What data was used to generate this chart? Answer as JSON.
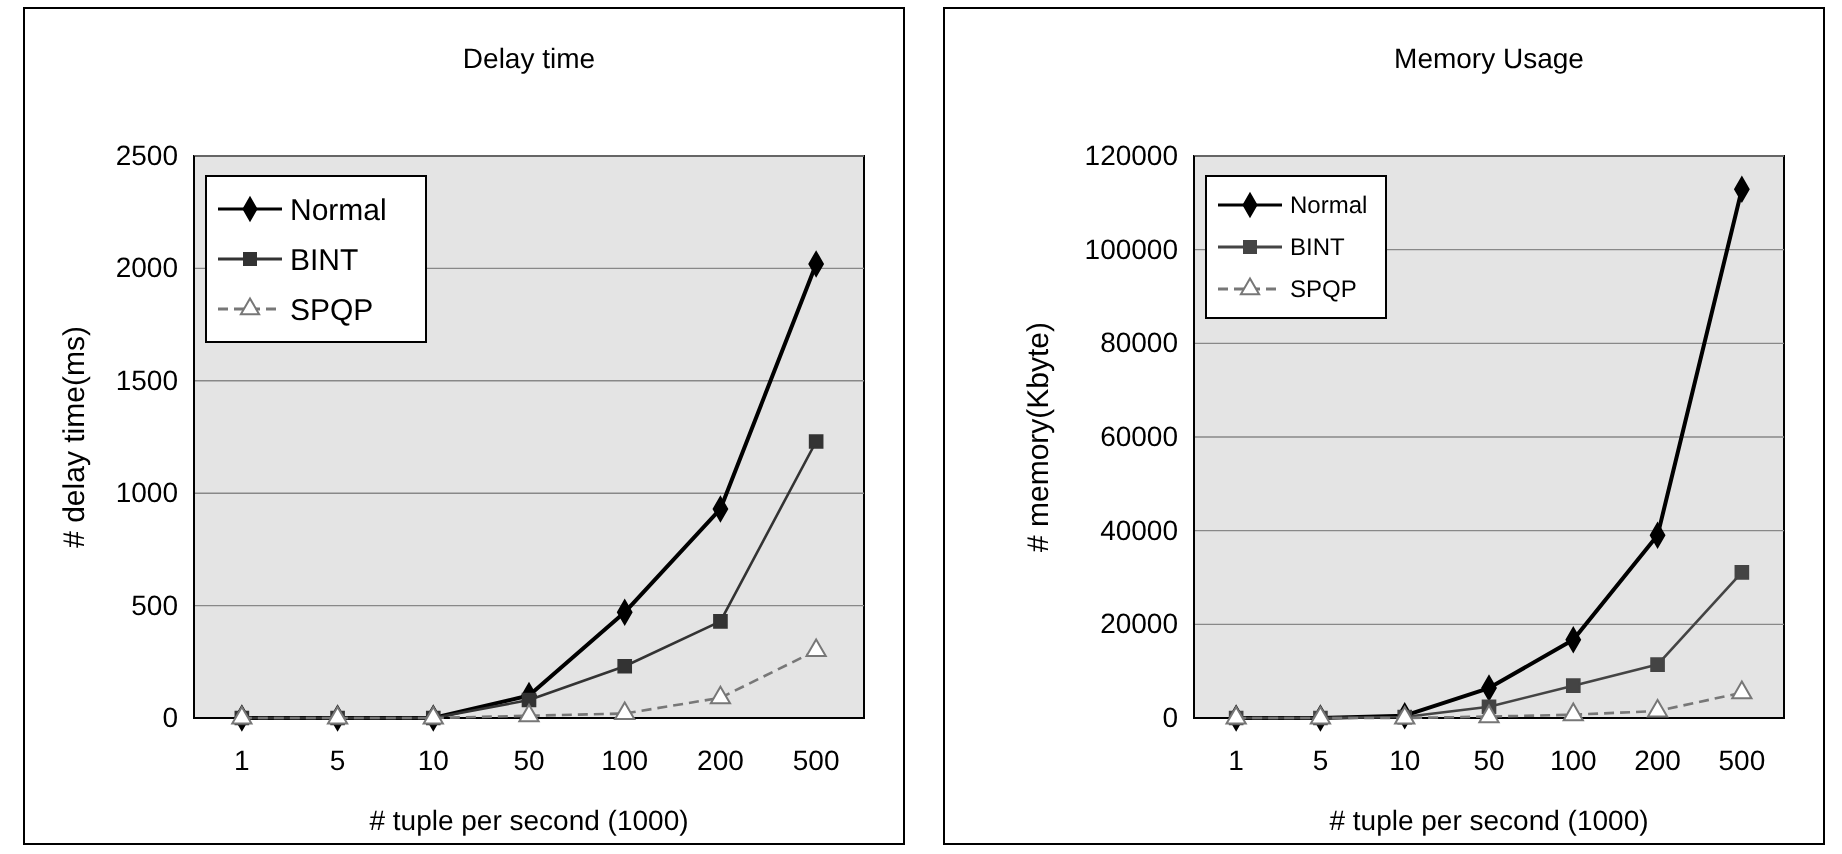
{
  "chart_data": [
    {
      "type": "line",
      "title": "Delay time",
      "xlabel": "#  tuple per second (1000)",
      "ylabel": "# delay time(ms)",
      "categories": [
        "1",
        "5",
        "10",
        "50",
        "100",
        "200",
        "500"
      ],
      "series": [
        {
          "name": "Normal",
          "color": "#000000",
          "marker": "diamond",
          "values": [
            0,
            0,
            0,
            100,
            470,
            930,
            2020
          ]
        },
        {
          "name": "BINT",
          "color": "#333333",
          "marker": "square",
          "values": [
            0,
            0,
            0,
            80,
            230,
            430,
            1230
          ]
        },
        {
          "name": "SPQP",
          "color": "#777777",
          "marker": "triangle",
          "line_style": "dashed",
          "values": [
            0,
            0,
            0,
            10,
            20,
            90,
            300
          ]
        }
      ],
      "ylim": [
        0,
        2500
      ],
      "yticks": [
        0,
        500,
        1000,
        1500,
        2000,
        2500
      ],
      "grid": "y",
      "legend": "top left"
    },
    {
      "type": "line",
      "title": "Memory Usage",
      "xlabel": "#  tuple per second (1000)",
      "ylabel": "# memory(Kbyte)",
      "categories": [
        "1",
        "5",
        "10",
        "50",
        "100",
        "200",
        "500"
      ],
      "series": [
        {
          "name": "Normal",
          "color": "#000000",
          "marker": "diamond",
          "values": [
            0,
            0,
            500,
            6400,
            16700,
            39000,
            112900
          ]
        },
        {
          "name": "BINT",
          "color": "#444444",
          "marker": "square",
          "values": [
            0,
            0,
            200,
            2400,
            6900,
            11400,
            31100
          ]
        },
        {
          "name": "SPQP",
          "color": "#777777",
          "marker": "triangle",
          "line_style": "dashed",
          "values": [
            0,
            0,
            0,
            300,
            700,
            1500,
            5400
          ]
        }
      ],
      "ylim": [
        0,
        120000
      ],
      "yticks": [
        0,
        20000,
        40000,
        60000,
        80000,
        100000,
        120000
      ],
      "grid": "y",
      "legend": "top left"
    }
  ]
}
